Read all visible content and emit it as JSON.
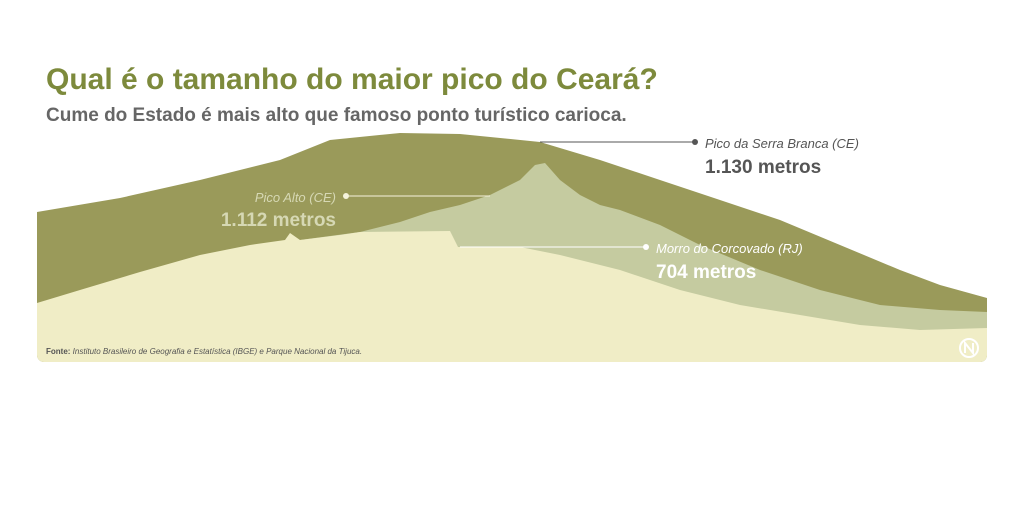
{
  "header": {
    "title": "Qual é o tamanho do maior pico do Ceará?",
    "subtitle": "Cume do Estado é mais alto que famoso ponto turístico carioca."
  },
  "labels": [
    {
      "name": "Pico da Serra Branca (CE)",
      "height": "1.130 metros"
    },
    {
      "name": "Pico Alto (CE)",
      "height": "1.112 metros"
    },
    {
      "name": "Morro do Corcovado (RJ)",
      "height": "704 metros"
    }
  ],
  "footer": {
    "source_label": "Fonte:",
    "source": "Instituto Brasileiro de Geografia e Estatística (IBGE) e Parque Nacional da Tijuca."
  }
}
